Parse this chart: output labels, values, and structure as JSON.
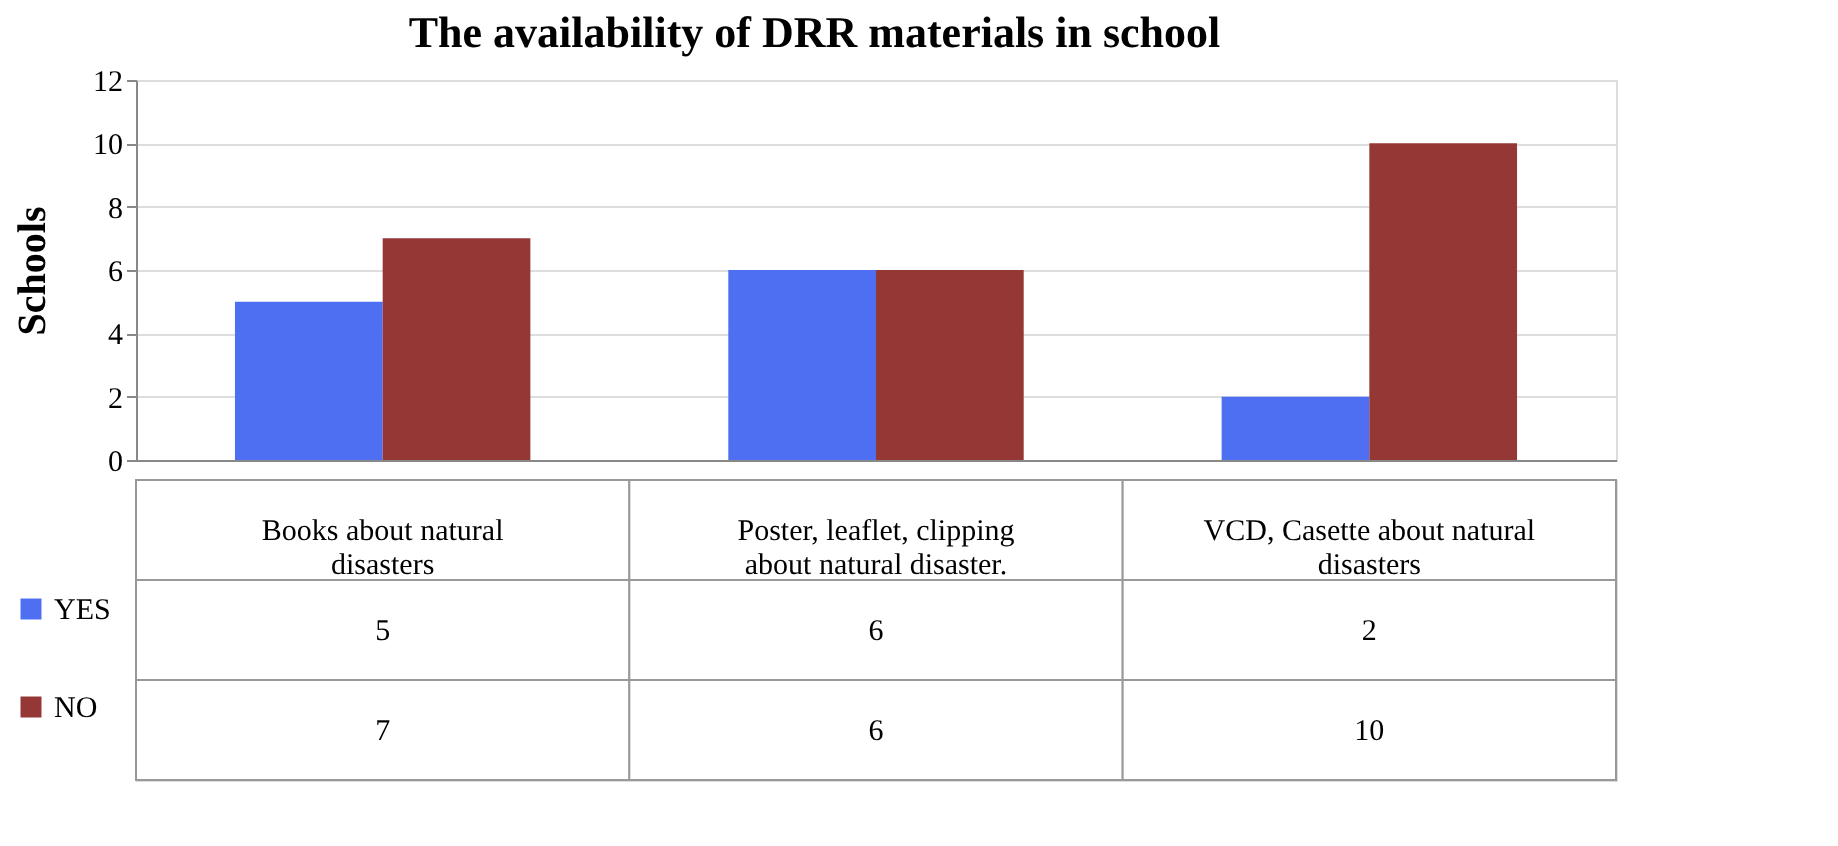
{
  "chart_data": {
    "type": "bar",
    "title": "The availability of DRR materials in school",
    "ylabel": "Schools",
    "categories": [
      "Books about natural disasters",
      "Poster, leaflet, clipping about natural disaster.",
      "VCD, Casette about natural disasters"
    ],
    "series": [
      {
        "name": "YES",
        "color": "#4f6ff2",
        "values": [
          5,
          6,
          2
        ]
      },
      {
        "name": "NO",
        "color": "#953735",
        "values": [
          7,
          6,
          10
        ]
      }
    ],
    "ylim": [
      0,
      12
    ],
    "yticks": [
      0,
      2,
      4,
      6,
      8,
      10,
      12
    ],
    "grid": "y",
    "legend": "bottom",
    "data_labels": true
  }
}
